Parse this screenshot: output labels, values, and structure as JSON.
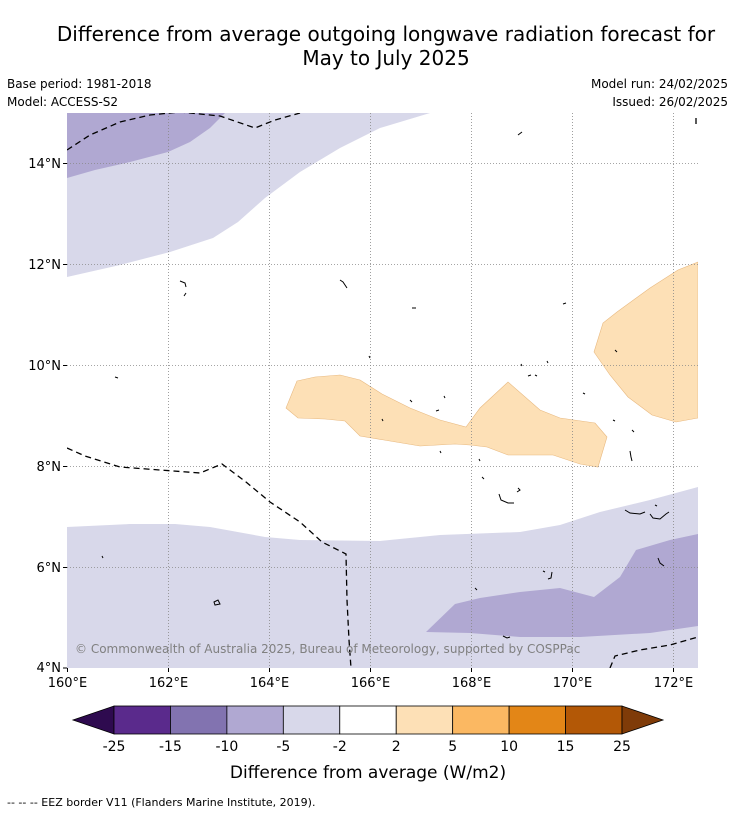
{
  "title": "Difference from average outgoing longwave radiation forecast for\nMay to July 2025",
  "meta_left": [
    "Base period: 1981-2018",
    "Model: ACCESS-S2"
  ],
  "meta_right": [
    "Model run: 24/02/2025",
    "Issued: 26/02/2025"
  ],
  "copyright": "© Commonwealth of Australia 2025, Bureau of Meteorology, supported by COSPPac",
  "map": {
    "lon_range": [
      160,
      172.5
    ],
    "lat_range": [
      4,
      15
    ],
    "x_ticks": [
      "160°E",
      "162°E",
      "164°E",
      "166°E",
      "168°E",
      "170°E",
      "172°E"
    ],
    "y_ticks": [
      "14°N",
      "12°N",
      "10°N",
      "8°N",
      "6°N",
      "4°N"
    ],
    "grid": true
  },
  "colorbar": {
    "title": "Difference from average (W/m2)",
    "labels": [
      "-25",
      "-15",
      "-10",
      "-5",
      "-2",
      "2",
      "5",
      "10",
      "15",
      "25"
    ],
    "colors": [
      "#2e0a4f",
      "#5a2a8c",
      "#8273b0",
      "#b0a8d2",
      "#d8d8ea",
      "#ffffff",
      "#fde0b6",
      "#fbb862",
      "#e38617",
      "#b35806",
      "#7f3b08"
    ]
  },
  "footnote": "--  --  -- EEZ border V11 (Flanders Marine Institute, 2019)."
}
